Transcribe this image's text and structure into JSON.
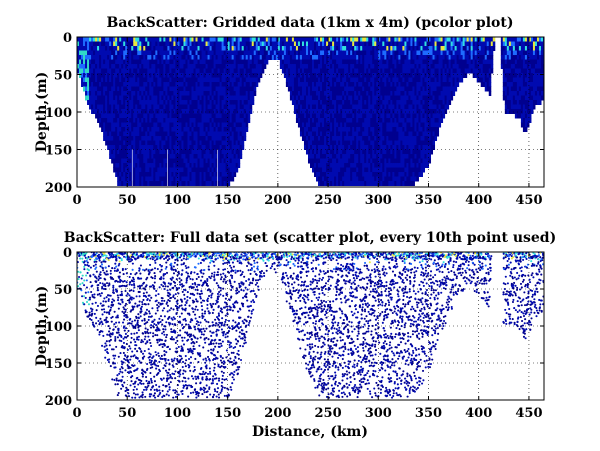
{
  "chart_data": [
    {
      "type": "heatmap",
      "title": "BackScatter: Gridded data (1km x 4m) (pcolor plot)",
      "xlabel": "",
      "ylabel": "Depth,(m)",
      "xlim": [
        0,
        465
      ],
      "ylim": [
        200,
        0
      ],
      "y_reversed": true,
      "xticks": [
        0,
        50,
        100,
        150,
        200,
        250,
        300,
        350,
        400,
        450
      ],
      "yticks": [
        0,
        50,
        100,
        150,
        200
      ],
      "grid": "dotted",
      "colormap": "jet",
      "bottom_profile": {
        "x": [
          0,
          5,
          10,
          20,
          30,
          40,
          50,
          70,
          100,
          130,
          140,
          150,
          160,
          170,
          180,
          190,
          200,
          210,
          220,
          230,
          240,
          260,
          300,
          320,
          330,
          340,
          350,
          360,
          370,
          380,
          390,
          400,
          410,
          415,
          420,
          425,
          430,
          440,
          445,
          450,
          455,
          460,
          465
        ],
        "depth": [
          45,
          65,
          90,
          110,
          150,
          195,
          197,
          197,
          197,
          197,
          197,
          197,
          170,
          110,
          55,
          25,
          30,
          70,
          120,
          165,
          197,
          197,
          197,
          197,
          197,
          185,
          165,
          120,
          85,
          60,
          45,
          60,
          75,
          0,
          0,
          100,
          100,
          105,
          130,
          110,
          90,
          85,
          80
        ]
      },
      "sample_gaps_km": [
        145,
        333,
        418
      ]
    },
    {
      "type": "scatter",
      "title": "BackScatter: Full data set (scatter plot, every 10th point used)",
      "xlabel": "Distance, (km)",
      "ylabel": "Depth,(m)",
      "xlim": [
        0,
        465
      ],
      "ylim": [
        200,
        0
      ],
      "y_reversed": true,
      "xticks": [
        0,
        50,
        100,
        150,
        200,
        250,
        300,
        350,
        400,
        450
      ],
      "yticks": [
        0,
        50,
        100,
        150,
        200
      ],
      "grid": "dotted",
      "colormap": "jet"
    }
  ],
  "colors": {
    "low": "#00008f",
    "mid": "#1e6bff",
    "cyan": "#30e0e0",
    "high": "#e8e840"
  }
}
